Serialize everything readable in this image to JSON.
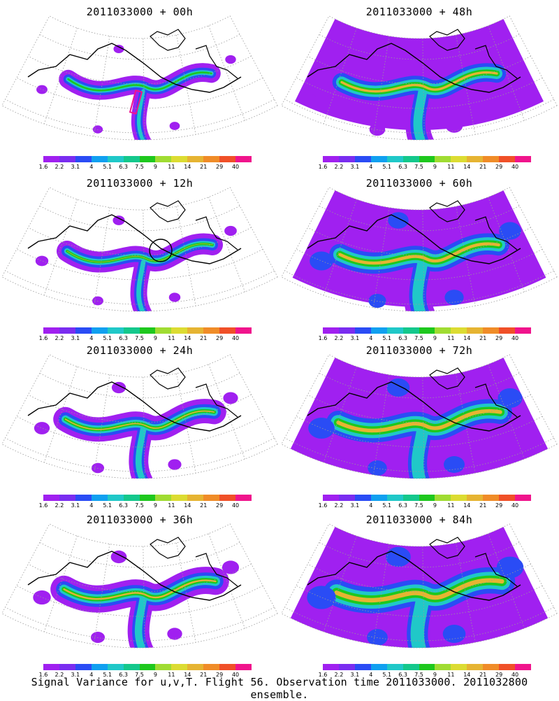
{
  "panels": [
    {
      "title": "2011033000 + 00h",
      "intensity": 0.12,
      "marker": "rectangle"
    },
    {
      "title": "2011033000 + 12h",
      "intensity": 0.2,
      "marker": "circle"
    },
    {
      "title": "2011033000 + 24h",
      "intensity": 0.32,
      "marker": ""
    },
    {
      "title": "2011033000 + 36h",
      "intensity": 0.42,
      "marker": ""
    },
    {
      "title": "2011033000 + 48h",
      "intensity": 0.55,
      "marker": ""
    },
    {
      "title": "2011033000 + 60h",
      "intensity": 0.68,
      "marker": ""
    },
    {
      "title": "2011033000 + 72h",
      "intensity": 0.8,
      "marker": ""
    },
    {
      "title": "2011033000 + 84h",
      "intensity": 0.92,
      "marker": ""
    }
  ],
  "colorbar": {
    "labels": [
      "1.6",
      "2.2",
      "3.1",
      "4",
      "5.1",
      "6.3",
      "7.5",
      "9",
      "11",
      "14",
      "21",
      "29",
      "40"
    ],
    "colors": [
      "#a020f0",
      "#7a2df0",
      "#2a4cf5",
      "#10a0f0",
      "#20c8c8",
      "#14c88c",
      "#1ec81e",
      "#a0dc32",
      "#dcdc32",
      "#e6b432",
      "#f08c28",
      "#f05028",
      "#f0148c"
    ]
  },
  "caption": "Signal Variance for u,v,T. Flight 56. Observation time 2011033000. 2011032800 ensemble."
}
